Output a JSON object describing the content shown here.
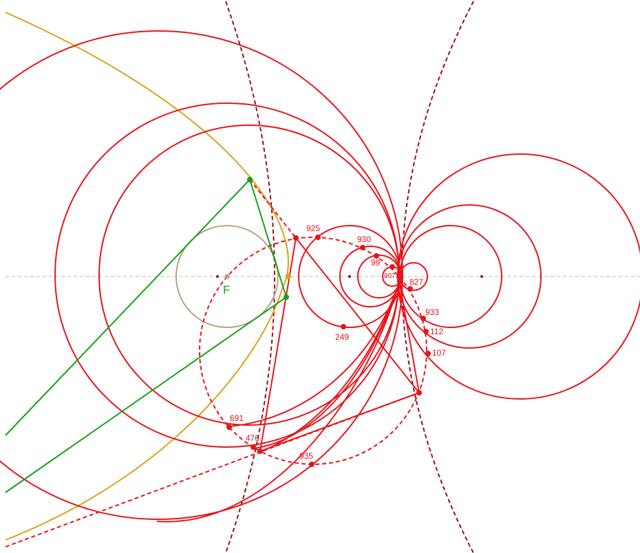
{
  "colors": {
    "red": "#e8141b",
    "dark_red": "#9b0f14",
    "green": "#15a01a",
    "gold": "#d9a21a",
    "tan": "#b9a184",
    "axis": "#b8b8b8"
  },
  "focus_label": "F",
  "point_labels": {
    "p925": "925",
    "p930": "930",
    "p99": "99",
    "p907": "907",
    "p827": "827",
    "p249": "249",
    "p933": "933",
    "p112": "112",
    "p107": "107",
    "p691": "691",
    "p476": "476",
    "p935": "935"
  }
}
